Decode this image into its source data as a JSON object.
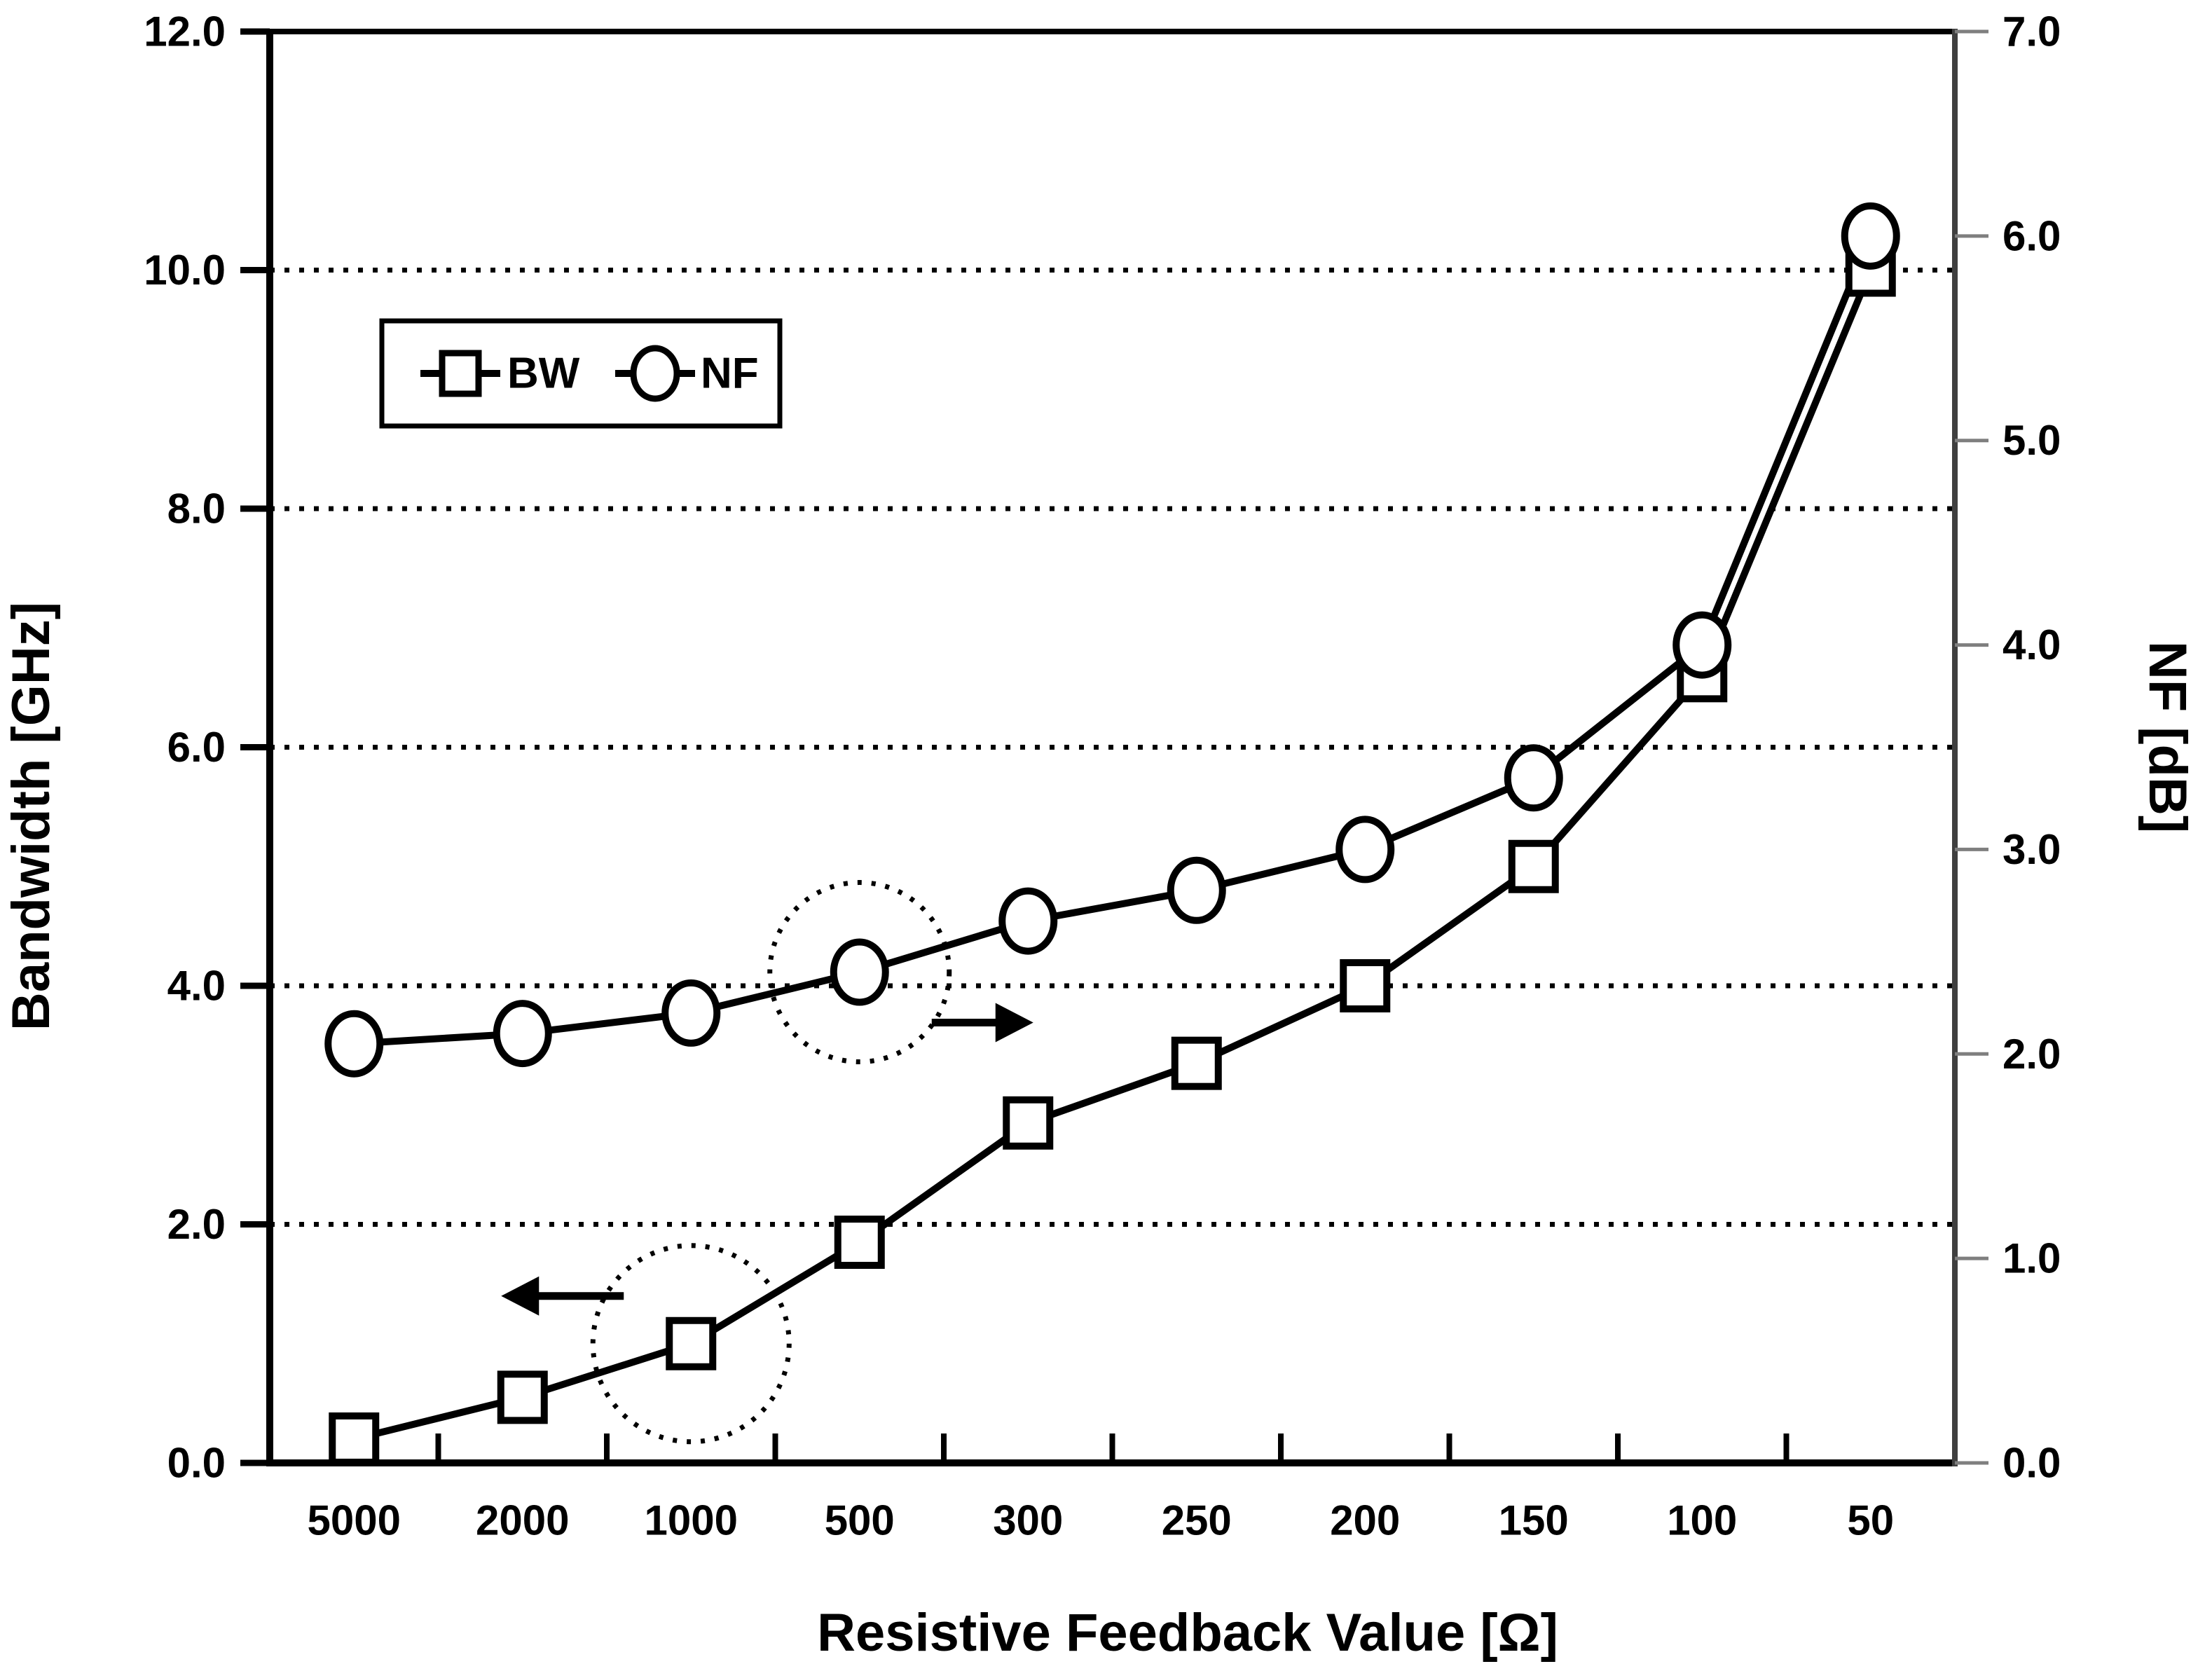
{
  "figure": {
    "background": "#ffffff",
    "colors": {
      "line": "#000000",
      "marker_fill": "#ffffff",
      "grid": "#000000",
      "right_axis": "#3f3f3f",
      "right_tick": "#7f7f7f"
    }
  },
  "chart_data": {
    "type": "line",
    "title": "",
    "xlabel": "Resistive Feedback Value [Ω]",
    "ylabel_left": "Bandwidth [GHz]",
    "ylabel_right": "NF [dB]",
    "categories": [
      "5000",
      "2000",
      "1000",
      "500",
      "300",
      "250",
      "200",
      "150",
      "100",
      "50"
    ],
    "ylim_left": [
      0,
      12
    ],
    "ylim_right": [
      0,
      7
    ],
    "yticks_left": [
      "0.0",
      "2.0",
      "4.0",
      "6.0",
      "8.0",
      "10.0",
      "12.0"
    ],
    "yticks_right": [
      "0.0",
      "1.0",
      "2.0",
      "3.0",
      "4.0",
      "5.0",
      "6.0",
      "7.0"
    ],
    "gridlines_left": [
      2,
      4,
      6,
      8,
      10
    ],
    "grid_style": "dotted",
    "legend": {
      "position": "top-left-inside",
      "entries": [
        "BW",
        "NF"
      ]
    },
    "series": [
      {
        "name": "BW",
        "axis": "left",
        "marker": "square",
        "values": [
          0.2,
          0.55,
          1.0,
          1.85,
          2.85,
          3.35,
          4.0,
          5.0,
          6.6,
          10.0
        ]
      },
      {
        "name": "NF",
        "axis": "right",
        "marker": "circle",
        "values": [
          2.05,
          2.1,
          2.2,
          2.4,
          2.65,
          2.8,
          3.0,
          3.35,
          4.0,
          6.0
        ]
      }
    ],
    "annotations": [
      {
        "target_series": "BW",
        "target_category": "1000",
        "arrow_direction": "left"
      },
      {
        "target_series": "NF",
        "target_category": "500",
        "arrow_direction": "right"
      }
    ]
  }
}
